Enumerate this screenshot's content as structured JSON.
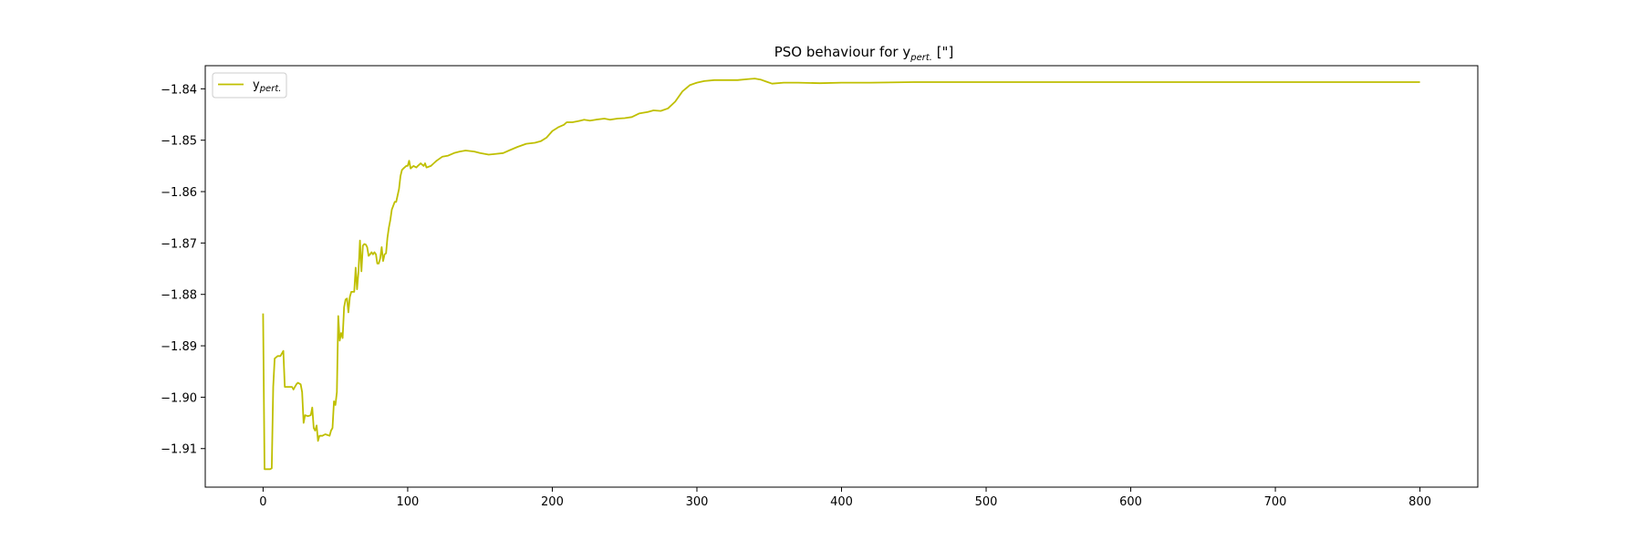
{
  "chart_data": {
    "type": "line",
    "title": {
      "main": "PSO behaviour for y",
      "sub": "pert.",
      "tail": " [\"]"
    },
    "xlabel": "",
    "ylabel": "",
    "xlim": [
      -40,
      840
    ],
    "ylim": [
      -1.9175,
      -1.8355
    ],
    "xticks": [
      0,
      100,
      200,
      300,
      400,
      500,
      600,
      700,
      800
    ],
    "yticks": [
      -1.91,
      -1.9,
      -1.89,
      -1.88,
      -1.87,
      -1.86,
      -1.85,
      -1.84
    ],
    "ytick_labels": [
      "−1.91",
      "−1.90",
      "−1.89",
      "−1.88",
      "−1.87",
      "−1.86",
      "−1.85",
      "−1.84"
    ],
    "grid": false,
    "legend": {
      "placement": "top-left",
      "main": "y",
      "sub": "pert."
    },
    "series": [
      {
        "name": "ypert.",
        "color": "#bfbf00",
        "points": [
          [
            0,
            -1.8837
          ],
          [
            1,
            -1.914
          ],
          [
            5,
            -1.914
          ],
          [
            6,
            -1.9138
          ],
          [
            7,
            -1.898
          ],
          [
            8,
            -1.8925
          ],
          [
            10,
            -1.892
          ],
          [
            12,
            -1.892
          ],
          [
            13,
            -1.8915
          ],
          [
            14,
            -1.891
          ],
          [
            15,
            -1.898
          ],
          [
            17,
            -1.898
          ],
          [
            20,
            -1.898
          ],
          [
            21,
            -1.8985
          ],
          [
            22,
            -1.898
          ],
          [
            23,
            -1.8975
          ],
          [
            24,
            -1.8972
          ],
          [
            26,
            -1.8975
          ],
          [
            27,
            -1.899
          ],
          [
            28,
            -1.905
          ],
          [
            29,
            -1.9035
          ],
          [
            31,
            -1.9037
          ],
          [
            33,
            -1.9035
          ],
          [
            34,
            -1.902
          ],
          [
            35,
            -1.906
          ],
          [
            36,
            -1.9065
          ],
          [
            37,
            -1.9055
          ],
          [
            38,
            -1.9085
          ],
          [
            39,
            -1.9075
          ],
          [
            41,
            -1.9075
          ],
          [
            43,
            -1.9072
          ],
          [
            46,
            -1.9075
          ],
          [
            47,
            -1.9065
          ],
          [
            48,
            -1.906
          ],
          [
            49,
            -1.9008
          ],
          [
            50,
            -1.9015
          ],
          [
            51,
            -1.899
          ],
          [
            52,
            -1.8842
          ],
          [
            53,
            -1.889
          ],
          [
            54,
            -1.8875
          ],
          [
            55,
            -1.8885
          ],
          [
            56,
            -1.8825
          ],
          [
            57,
            -1.881
          ],
          [
            58,
            -1.8808
          ],
          [
            59,
            -1.8835
          ],
          [
            60,
            -1.8805
          ],
          [
            61,
            -1.8795
          ],
          [
            62,
            -1.8795
          ],
          [
            63,
            -1.8795
          ],
          [
            64,
            -1.8748
          ],
          [
            65,
            -1.879
          ],
          [
            66,
            -1.8755
          ],
          [
            67,
            -1.8695
          ],
          [
            68,
            -1.8755
          ],
          [
            69,
            -1.8705
          ],
          [
            70,
            -1.8702
          ],
          [
            71,
            -1.8703
          ],
          [
            72,
            -1.8708
          ],
          [
            73,
            -1.8725
          ],
          [
            74,
            -1.8722
          ],
          [
            75,
            -1.8718
          ],
          [
            76,
            -1.8722
          ],
          [
            77,
            -1.8718
          ],
          [
            78,
            -1.8722
          ],
          [
            79,
            -1.874
          ],
          [
            80,
            -1.874
          ],
          [
            81,
            -1.873
          ],
          [
            82,
            -1.8708
          ],
          [
            83,
            -1.8735
          ],
          [
            84,
            -1.8722
          ],
          [
            85,
            -1.872
          ],
          [
            86,
            -1.869
          ],
          [
            87,
            -1.867
          ],
          [
            88,
            -1.8655
          ],
          [
            89,
            -1.8635
          ],
          [
            91,
            -1.862
          ],
          [
            92,
            -1.862
          ],
          [
            93,
            -1.8608
          ],
          [
            94,
            -1.8595
          ],
          [
            95,
            -1.857
          ],
          [
            96,
            -1.8558
          ],
          [
            97,
            -1.8555
          ],
          [
            99,
            -1.855
          ],
          [
            100,
            -1.855
          ],
          [
            101,
            -1.854
          ],
          [
            102,
            -1.8555
          ],
          [
            104,
            -1.855
          ],
          [
            106,
            -1.8553
          ],
          [
            107,
            -1.855
          ],
          [
            109,
            -1.8545
          ],
          [
            111,
            -1.855
          ],
          [
            112,
            -1.8545
          ],
          [
            113,
            -1.8553
          ],
          [
            116,
            -1.855
          ],
          [
            118,
            -1.8545
          ],
          [
            120,
            -1.854
          ],
          [
            124,
            -1.8532
          ],
          [
            128,
            -1.853
          ],
          [
            132,
            -1.8525
          ],
          [
            136,
            -1.8522
          ],
          [
            140,
            -1.852
          ],
          [
            146,
            -1.8522
          ],
          [
            150,
            -1.8525
          ],
          [
            156,
            -1.8528
          ],
          [
            160,
            -1.8527
          ],
          [
            166,
            -1.8525
          ],
          [
            170,
            -1.852
          ],
          [
            176,
            -1.8513
          ],
          [
            182,
            -1.8507
          ],
          [
            188,
            -1.8505
          ],
          [
            192,
            -1.8502
          ],
          [
            196,
            -1.8495
          ],
          [
            200,
            -1.8482
          ],
          [
            204,
            -1.8475
          ],
          [
            208,
            -1.847
          ],
          [
            210,
            -1.8465
          ],
          [
            214,
            -1.8465
          ],
          [
            218,
            -1.8463
          ],
          [
            222,
            -1.846
          ],
          [
            226,
            -1.8462
          ],
          [
            230,
            -1.846
          ],
          [
            236,
            -1.8458
          ],
          [
            240,
            -1.846
          ],
          [
            245,
            -1.8458
          ],
          [
            250,
            -1.8457
          ],
          [
            255,
            -1.8455
          ],
          [
            260,
            -1.8448
          ],
          [
            266,
            -1.8445
          ],
          [
            270,
            -1.8442
          ],
          [
            275,
            -1.8443
          ],
          [
            280,
            -1.8438
          ],
          [
            285,
            -1.8425
          ],
          [
            290,
            -1.8405
          ],
          [
            295,
            -1.8393
          ],
          [
            300,
            -1.8388
          ],
          [
            305,
            -1.8385
          ],
          [
            312,
            -1.8383
          ],
          [
            320,
            -1.8383
          ],
          [
            328,
            -1.8383
          ],
          [
            336,
            -1.8381
          ],
          [
            340,
            -1.838
          ],
          [
            344,
            -1.8382
          ],
          [
            348,
            -1.8386
          ],
          [
            352,
            -1.839
          ],
          [
            360,
            -1.8388
          ],
          [
            370,
            -1.8388
          ],
          [
            385,
            -1.8389
          ],
          [
            400,
            -1.8388
          ],
          [
            420,
            -1.8388
          ],
          [
            450,
            -1.8387
          ],
          [
            500,
            -1.8387
          ],
          [
            550,
            -1.8387
          ],
          [
            600,
            -1.8387
          ],
          [
            700,
            -1.8387
          ],
          [
            800,
            -1.8387
          ]
        ]
      }
    ]
  }
}
